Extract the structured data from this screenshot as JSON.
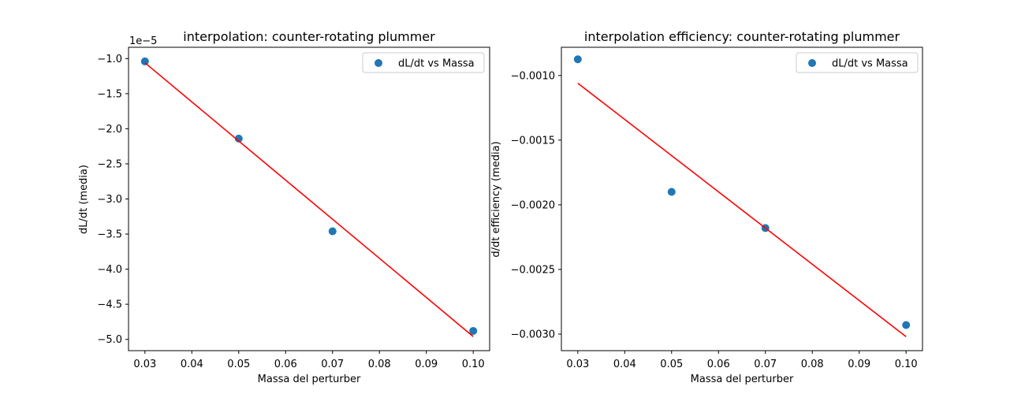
{
  "chart_data": [
    {
      "type": "scatter",
      "title": "interpolation: counter-rotating plummer",
      "xlabel": "Massa del perturber",
      "ylabel": "dL/dt (media)",
      "offset_text": "1e−5",
      "scale": 1e-05,
      "xlim": [
        0.0265,
        0.1035
      ],
      "ylim": [
        -5.161,
        -0.839
      ],
      "xticks": [
        0.03,
        0.04,
        0.05,
        0.06,
        0.07,
        0.08,
        0.09,
        0.1
      ],
      "xtick_labels": [
        "0.03",
        "0.04",
        "0.05",
        "0.06",
        "0.07",
        "0.08",
        "0.09",
        "0.10"
      ],
      "yticks": [
        -1.0,
        -1.5,
        -2.0,
        -2.5,
        -3.0,
        -3.5,
        -4.0,
        -4.5,
        -5.0
      ],
      "ytick_labels": [
        "−1.0",
        "−1.5",
        "−2.0",
        "−2.5",
        "−3.0",
        "−3.5",
        "−4.0",
        "−4.5",
        "−5.0"
      ],
      "series": [
        {
          "name": "dL/dt vs Massa",
          "kind": "scatter",
          "color": "#1f77b4",
          "x": [
            0.03,
            0.05,
            0.07,
            0.1
          ],
          "y": [
            -1.04,
            -2.14,
            -3.46,
            -4.88
          ]
        },
        {
          "kind": "line",
          "color": "#ff0000",
          "x": [
            0.03,
            0.1
          ],
          "y": [
            -1.06,
            -4.96
          ]
        }
      ],
      "legend": "top-right",
      "grid": false
    },
    {
      "type": "scatter",
      "title": "interpolation efficiency: counter-rotating plummer",
      "xlabel": "Massa del perturber",
      "ylabel": "d/dt efficiency (media)",
      "offset_text": "",
      "scale": 1,
      "xlim": [
        0.0265,
        0.1035
      ],
      "ylim": [
        -0.003128,
        -0.000782
      ],
      "xticks": [
        0.03,
        0.04,
        0.05,
        0.06,
        0.07,
        0.08,
        0.09,
        0.1
      ],
      "xtick_labels": [
        "0.03",
        "0.04",
        "0.05",
        "0.06",
        "0.07",
        "0.08",
        "0.09",
        "0.10"
      ],
      "yticks": [
        -0.001,
        -0.0015,
        -0.002,
        -0.0025,
        -0.003
      ],
      "ytick_labels": [
        "−0.0010",
        "−0.0015",
        "−0.0020",
        "−0.0025",
        "−0.0030"
      ],
      "series": [
        {
          "name": "dL/dt vs Massa",
          "kind": "scatter",
          "color": "#1f77b4",
          "x": [
            0.03,
            0.05,
            0.07,
            0.1
          ],
          "y": [
            -0.000875,
            -0.0019,
            -0.00218,
            -0.00293
          ]
        },
        {
          "kind": "line",
          "color": "#ff0000",
          "x": [
            0.03,
            0.1
          ],
          "y": [
            -0.00106,
            -0.00302
          ]
        }
      ],
      "legend": "top-right",
      "grid": false
    }
  ]
}
